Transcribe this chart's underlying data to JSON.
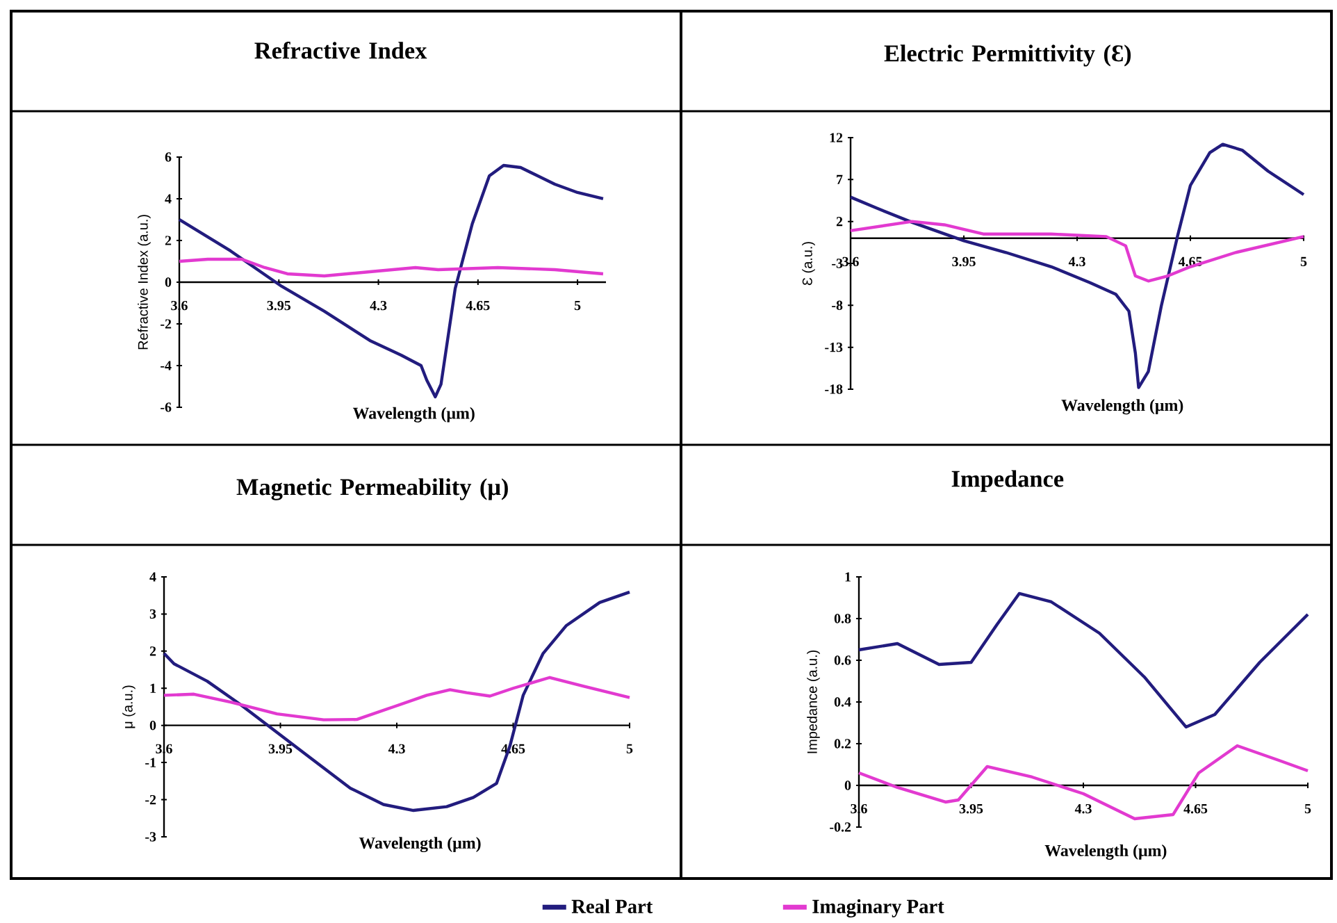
{
  "chart_data": [
    {
      "type": "line",
      "title": "Refractive Index",
      "xlabel": "Wavelength (μm)",
      "ylabel": "Refractive Index (a.u.)",
      "xlim": [
        3.6,
        5.1
      ],
      "xticks": [
        3.6,
        3.95,
        4.3,
        4.65,
        5
      ],
      "ylim": [
        -6,
        6
      ],
      "yticks": [
        -6,
        -4,
        -2,
        0,
        2,
        4,
        6
      ],
      "series": [
        {
          "color": "#221c7e",
          "x": [
            3.6,
            3.78,
            3.96,
            4.11,
            4.27,
            4.38,
            4.45,
            4.47,
            4.5,
            4.52,
            4.57,
            4.63,
            4.69,
            4.74,
            4.8,
            4.92,
            5.0,
            5.09
          ],
          "values": [
            3.0,
            1.5,
            -0.2,
            -1.4,
            -2.8,
            -3.5,
            -4.0,
            -4.7,
            -5.5,
            -4.9,
            -0.3,
            2.8,
            5.1,
            5.6,
            5.5,
            4.7,
            4.3,
            4.0
          ]
        },
        {
          "color": "#e23ad0",
          "x": [
            3.6,
            3.7,
            3.82,
            3.9,
            3.98,
            4.11,
            4.27,
            4.43,
            4.51,
            4.72,
            4.92,
            5.09
          ],
          "values": [
            1.0,
            1.1,
            1.1,
            0.7,
            0.4,
            0.3,
            0.5,
            0.7,
            0.6,
            0.7,
            0.6,
            0.4
          ]
        }
      ]
    },
    {
      "type": "line",
      "title": "Electric Permittivity (Ɛ)",
      "xlabel": "Wavelength (μm)",
      "ylabel": "Ɛ (a.u.)",
      "xlim": [
        3.6,
        5
      ],
      "xticks": [
        3.6,
        3.95,
        4.3,
        4.65,
        5
      ],
      "ylim": [
        -18,
        12
      ],
      "yticks": [
        -18,
        -13,
        -8,
        -3,
        2,
        7,
        12
      ],
      "series": [
        {
          "color": "#221c7e",
          "x": [
            3.6,
            3.68,
            3.79,
            3.95,
            4.08,
            4.22,
            4.34,
            4.42,
            4.46,
            4.48,
            4.49,
            4.52,
            4.56,
            4.61,
            4.65,
            4.71,
            4.75,
            4.81,
            4.89,
            5.0
          ],
          "values": [
            4.9,
            3.6,
            1.9,
            -0.3,
            -1.7,
            -3.4,
            -5.3,
            -6.7,
            -8.7,
            -13.7,
            -17.8,
            -15.9,
            -8.1,
            0.2,
            6.3,
            10.2,
            11.2,
            10.5,
            8.0,
            5.2
          ]
        },
        {
          "color": "#e23ad0",
          "x": [
            3.6,
            3.79,
            3.89,
            4.01,
            4.22,
            4.39,
            4.45,
            4.48,
            4.52,
            4.58,
            4.65,
            4.79,
            5.0
          ],
          "values": [
            0.9,
            2.0,
            1.6,
            0.5,
            0.5,
            0.2,
            -0.9,
            -4.5,
            -5.1,
            -4.5,
            -3.4,
            -1.7,
            0.2
          ]
        }
      ]
    },
    {
      "type": "line",
      "title": "Magnetic Permeability (μ)",
      "xlabel": "Wavelength (μm)",
      "ylabel": "μ (a.u.)",
      "xlim": [
        3.6,
        5
      ],
      "xticks": [
        3.6,
        3.95,
        4.3,
        4.65,
        5
      ],
      "ylim": [
        -3,
        4
      ],
      "yticks": [
        -3,
        -2,
        -1,
        0,
        1,
        2,
        3,
        4
      ],
      "series": [
        {
          "color": "#221c7e",
          "x": [
            3.6,
            3.63,
            3.73,
            3.83,
            3.94,
            4.05,
            4.16,
            4.26,
            4.35,
            4.45,
            4.53,
            4.6,
            4.64,
            4.68,
            4.74,
            4.81,
            4.91,
            5.0
          ],
          "values": [
            1.94,
            1.66,
            1.19,
            0.56,
            -0.19,
            -0.94,
            -1.69,
            -2.13,
            -2.29,
            -2.19,
            -1.94,
            -1.56,
            -0.56,
            0.81,
            1.94,
            2.69,
            3.31,
            3.59
          ]
        },
        {
          "color": "#e23ad0",
          "x": [
            3.6,
            3.69,
            3.8,
            3.94,
            4.08,
            4.18,
            4.29,
            4.39,
            4.46,
            4.51,
            4.58,
            4.65,
            4.76,
            4.86,
            5.0
          ],
          "values": [
            0.81,
            0.84,
            0.63,
            0.31,
            0.15,
            0.16,
            0.5,
            0.81,
            0.96,
            0.88,
            0.79,
            1.0,
            1.29,
            1.06,
            0.75
          ]
        }
      ]
    },
    {
      "type": "line",
      "title": "Impedance",
      "xlabel": "Wavelength (μm)",
      "ylabel": "Impedance (a.u.)",
      "xlim": [
        3.6,
        5
      ],
      "xticks": [
        3.6,
        3.95,
        4.3,
        4.65,
        5
      ],
      "ylim": [
        -0.2,
        1
      ],
      "yticks": [
        -0.2,
        0,
        0.2,
        0.4,
        0.6,
        0.8,
        1
      ],
      "legend": "bottom",
      "series": [
        {
          "name": "Real Part",
          "color": "#221c7e",
          "x": [
            3.6,
            3.72,
            3.85,
            3.95,
            4.03,
            4.1,
            4.2,
            4.35,
            4.49,
            4.62,
            4.71,
            4.85,
            5.0
          ],
          "values": [
            0.65,
            0.68,
            0.58,
            0.59,
            0.77,
            0.92,
            0.88,
            0.73,
            0.52,
            0.28,
            0.34,
            0.59,
            0.82
          ]
        },
        {
          "name": "Imaginary Part",
          "color": "#e23ad0",
          "x": [
            3.6,
            3.72,
            3.87,
            3.91,
            4.0,
            4.14,
            4.3,
            4.46,
            4.58,
            4.66,
            4.78,
            4.91,
            5.0
          ],
          "values": [
            0.06,
            -0.01,
            -0.08,
            -0.07,
            0.09,
            0.04,
            -0.04,
            -0.16,
            -0.14,
            0.06,
            0.19,
            0.12,
            0.07
          ]
        }
      ]
    }
  ]
}
